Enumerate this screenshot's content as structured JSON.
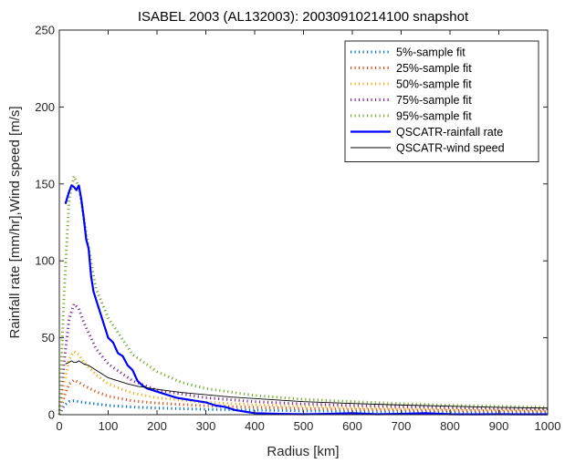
{
  "chart_data": {
    "type": "line",
    "title": "ISABEL 2003 (AL132003): 20030910214100 snapshot",
    "xlabel": "Radius [km]",
    "ylabel": "Rainfall rate [mm/hr],Wind speed [m/s]",
    "xlim": [
      0,
      1000
    ],
    "ylim": [
      0,
      250
    ],
    "xticks": [
      "0",
      "100",
      "200",
      "300",
      "400",
      "500",
      "600",
      "700",
      "800",
      "900",
      "1000"
    ],
    "yticks": [
      "0",
      "50",
      "100",
      "150",
      "200",
      "250"
    ],
    "grid": false,
    "legend_position": "top-right",
    "series": [
      {
        "name": "5%-sample fit",
        "color": "#0072BD",
        "style": "dotted",
        "x": [
          0,
          10,
          20,
          30,
          40,
          50,
          75,
          100,
          150,
          200,
          300,
          400,
          500,
          600,
          700,
          800,
          900,
          1000
        ],
        "y": [
          0,
          6,
          8.5,
          9,
          8.5,
          8,
          7,
          6,
          5,
          4.3,
          3.5,
          3,
          2.5,
          2.1,
          1.8,
          1.6,
          1.4,
          1.3
        ]
      },
      {
        "name": "25%-sample fit",
        "color": "#D95319",
        "style": "dotted",
        "x": [
          0,
          10,
          20,
          30,
          40,
          50,
          75,
          100,
          150,
          200,
          300,
          400,
          500,
          600,
          700,
          800,
          900,
          1000
        ],
        "y": [
          0,
          12,
          20,
          22.5,
          21,
          19,
          15,
          12,
          9,
          7.5,
          5.8,
          4.8,
          4,
          3.4,
          3,
          2.7,
          2.4,
          2.2
        ]
      },
      {
        "name": "50%-sample fit",
        "color": "#EDB120",
        "style": "dotted",
        "x": [
          0,
          10,
          20,
          30,
          40,
          50,
          75,
          100,
          150,
          200,
          300,
          400,
          500,
          600,
          700,
          800,
          900,
          1000
        ],
        "y": [
          0,
          20,
          36,
          41,
          39,
          34,
          26,
          20,
          14,
          11,
          8,
          6.5,
          5.5,
          4.6,
          4,
          3.6,
          3.2,
          2.9
        ]
      },
      {
        "name": "75%-sample fit",
        "color": "#7E2F8E",
        "style": "dotted",
        "x": [
          0,
          10,
          20,
          30,
          40,
          50,
          75,
          100,
          150,
          200,
          300,
          400,
          500,
          600,
          700,
          800,
          900,
          1000
        ],
        "y": [
          0,
          35,
          62,
          72,
          69,
          60,
          43,
          33,
          22,
          16,
          11,
          8.5,
          7,
          6,
          5.2,
          4.6,
          4.1,
          3.7
        ]
      },
      {
        "name": "95%-sample fit",
        "color": "#77AC30",
        "style": "dotted",
        "x": [
          0,
          10,
          20,
          30,
          40,
          50,
          60,
          75,
          100,
          150,
          200,
          250,
          300,
          400,
          500,
          600,
          700,
          800,
          900,
          1000
        ],
        "y": [
          0,
          80,
          140,
          155,
          148,
          128,
          108,
          82,
          63,
          39,
          28,
          21,
          17,
          12.5,
          10,
          8.5,
          7.2,
          6.2,
          5.5,
          4.8
        ]
      },
      {
        "name": "QSCATR-rainfall rate",
        "color": "#0000FF",
        "style": "solid",
        "x": [
          12.5,
          20,
          25,
          30,
          35,
          40,
          45,
          50,
          55,
          60,
          65,
          70,
          80,
          90,
          100,
          110,
          120,
          130,
          140,
          150,
          160,
          170,
          180,
          190,
          200,
          220,
          240,
          260,
          280,
          300,
          320,
          340,
          360,
          380,
          400,
          450,
          500,
          550,
          600,
          650,
          700,
          750,
          800,
          850,
          900,
          950,
          1000
        ],
        "y": [
          137,
          145,
          149,
          148,
          146,
          149,
          140,
          128,
          114,
          108,
          90,
          80,
          70,
          60,
          50,
          47,
          40,
          38,
          32,
          29,
          22,
          19,
          17,
          16,
          15,
          13,
          11,
          10,
          9,
          8,
          6,
          5,
          3,
          2,
          1,
          0.5,
          0.3,
          0.5,
          1,
          0.3,
          0.5,
          1,
          0.3,
          0.2,
          0.3,
          0.2,
          0.2
        ]
      },
      {
        "name": "QSCATR-wind speed",
        "color": "#000000",
        "style": "solid",
        "x": [
          12.5,
          20,
          25,
          30,
          35,
          40,
          45,
          50,
          60,
          70,
          80,
          90,
          100,
          120,
          140,
          160,
          180,
          200,
          250,
          300,
          350,
          400,
          500,
          600,
          700,
          800,
          900,
          1000
        ],
        "y": [
          33,
          34,
          35,
          34,
          34,
          35,
          34,
          33,
          32,
          30,
          28,
          26,
          24,
          22,
          20,
          18.5,
          17.5,
          16.5,
          14.5,
          13,
          11.5,
          10.5,
          8.5,
          7.3,
          6.3,
          5.5,
          4.8,
          4.3
        ]
      }
    ]
  }
}
